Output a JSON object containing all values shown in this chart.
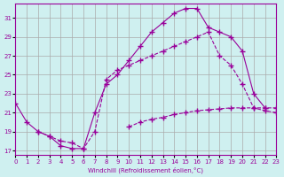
{
  "xlabel": "Windchill (Refroidissement éolien,°C)",
  "bg_color": "#cff0f0",
  "grid_color": "#aaaaaa",
  "line_color": "#990099",
  "xlim": [
    0,
    23
  ],
  "ylim": [
    16.5,
    32.5
  ],
  "yticks": [
    17,
    19,
    21,
    23,
    25,
    27,
    29,
    31
  ],
  "xticks": [
    0,
    1,
    2,
    3,
    4,
    5,
    6,
    7,
    8,
    9,
    10,
    11,
    12,
    13,
    14,
    15,
    16,
    17,
    18,
    19,
    20,
    21,
    22,
    23
  ],
  "line1_x": [
    0,
    1,
    2,
    3,
    4,
    5,
    6,
    7,
    8,
    9,
    10,
    11,
    12,
    13,
    14,
    15,
    16,
    17,
    18,
    19,
    20,
    21,
    22
  ],
  "line1_y": [
    22.0,
    20.0,
    19.0,
    18.5,
    17.5,
    17.2,
    17.2,
    21.0,
    24.0,
    25.0,
    26.5,
    28.0,
    29.5,
    30.5,
    31.5,
    32.0,
    32.0,
    30.0,
    29.5,
    29.0,
    27.5,
    23.0,
    21.5
  ],
  "line2_x": [
    2,
    3,
    4,
    5,
    6,
    7,
    8,
    9,
    10,
    11,
    12,
    13,
    14,
    15,
    16,
    17,
    18,
    19,
    20,
    21,
    22,
    23
  ],
  "line2_y": [
    19.0,
    18.5,
    18.0,
    17.8,
    17.2,
    19.0,
    24.5,
    25.5,
    26.0,
    26.5,
    27.0,
    27.5,
    28.0,
    28.5,
    29.0,
    29.5,
    27.0,
    26.0,
    24.0,
    21.5,
    21.2,
    21.0
  ],
  "line3_x": [
    10,
    11,
    12,
    13,
    14,
    15,
    16,
    17,
    18,
    19,
    20,
    21,
    22,
    23
  ],
  "line3_y": [
    19.5,
    20.0,
    20.3,
    20.5,
    20.8,
    21.0,
    21.2,
    21.3,
    21.4,
    21.5,
    21.5,
    21.5,
    21.5,
    21.5
  ]
}
